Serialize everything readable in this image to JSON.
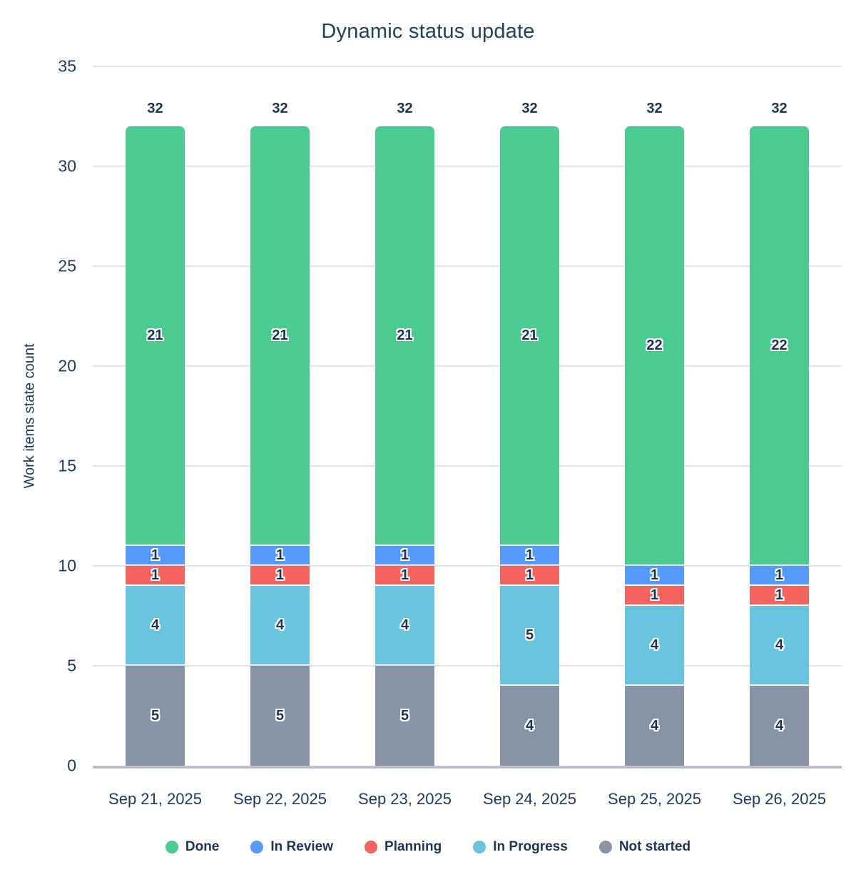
{
  "chart_data": {
    "type": "bar",
    "stacked": true,
    "title": "Dynamic status update",
    "ylabel": "Work items state count",
    "xlabel": "",
    "ylim": [
      0,
      35
    ],
    "ytick_step": 5,
    "grid": true,
    "legend_position": "bottom",
    "categories": [
      "Sep 21, 2025",
      "Sep 22, 2025",
      "Sep 23, 2025",
      "Sep 24, 2025",
      "Sep 25, 2025",
      "Sep 26, 2025"
    ],
    "series": [
      {
        "name": "Not started",
        "color": "#8894a6",
        "values": [
          5,
          5,
          5,
          4,
          4,
          4
        ]
      },
      {
        "name": "In Progress",
        "color": "#69c4df",
        "values": [
          4,
          4,
          4,
          5,
          4,
          4
        ]
      },
      {
        "name": "Planning",
        "color": "#f4645e",
        "values": [
          1,
          1,
          1,
          1,
          1,
          1
        ]
      },
      {
        "name": "In Review",
        "color": "#5599fa",
        "values": [
          1,
          1,
          1,
          1,
          1,
          1
        ]
      },
      {
        "name": "Done",
        "color": "#4bcb92",
        "values": [
          21,
          21,
          21,
          21,
          22,
          22
        ]
      }
    ],
    "totals": [
      32,
      32,
      32,
      32,
      32,
      32
    ],
    "legend_order": [
      "Done",
      "In Review",
      "Planning",
      "In Progress",
      "Not started"
    ]
  },
  "colors": {
    "text": "#1d3a66",
    "bold_text": "#1c3557",
    "title": "#24405f",
    "grid": "#e2e4e8",
    "axis_line": "#b9c0cc",
    "background": "#ffffff"
  }
}
